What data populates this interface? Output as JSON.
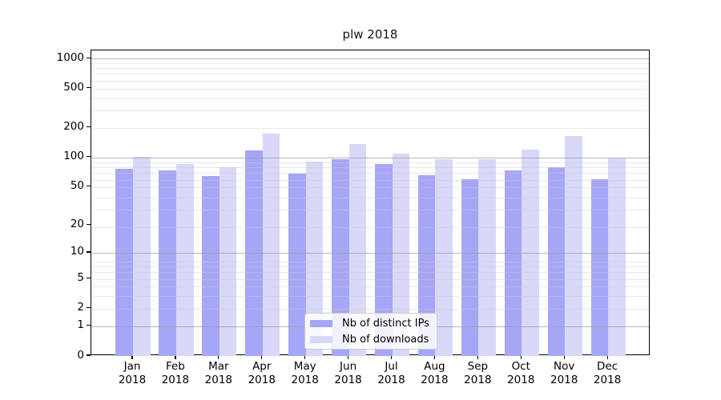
{
  "chart_data": {
    "type": "bar",
    "title": "plw 2018",
    "categories": [
      "Jan 2018",
      "Feb 2018",
      "Mar 2018",
      "Apr 2018",
      "May 2018",
      "Jun 2018",
      "Jul 2018",
      "Aug 2018",
      "Sep 2018",
      "Oct 2018",
      "Nov 2018",
      "Dec 2018"
    ],
    "series": [
      {
        "key": "distinct-ips",
        "name": "Nb of distinct IPs",
        "color": "#a6a6f6",
        "values": [
          77,
          73,
          65,
          118,
          68,
          95,
          86,
          66,
          60,
          74,
          80,
          60
        ]
      },
      {
        "key": "downloads",
        "name": "Nb of downloads",
        "color": "#d8d8f8",
        "values": [
          101,
          86,
          80,
          175,
          90,
          137,
          110,
          95,
          96,
          121,
          164,
          98
        ]
      }
    ],
    "xlabel": "",
    "ylabel": "",
    "yscale": "log1p",
    "ylim": [
      0,
      1212
    ],
    "yticks": [
      0,
      1,
      2,
      5,
      10,
      20,
      50,
      100,
      200,
      500,
      1000
    ],
    "grid": true,
    "legend_position": "lower center"
  },
  "axes": {
    "y_ticks": [
      {
        "label": "1000",
        "value": 1000
      },
      {
        "label": "500",
        "value": 500
      },
      {
        "label": "200",
        "value": 200
      },
      {
        "label": "100",
        "value": 100
      },
      {
        "label": "50",
        "value": 50
      },
      {
        "label": "20",
        "value": 20
      },
      {
        "label": "10",
        "value": 10
      },
      {
        "label": "5",
        "value": 5
      },
      {
        "label": "2",
        "value": 2
      },
      {
        "label": "1",
        "value": 1
      },
      {
        "label": "0",
        "value": 0
      }
    ],
    "major_gridline_values": [
      1,
      10,
      100,
      1000
    ],
    "minor_gridline_positions": [
      3,
      4,
      5,
      6,
      7,
      8,
      9,
      20,
      30,
      40,
      50,
      60,
      70,
      80,
      90,
      200,
      300,
      400,
      500,
      600,
      700,
      800,
      900
    ]
  }
}
